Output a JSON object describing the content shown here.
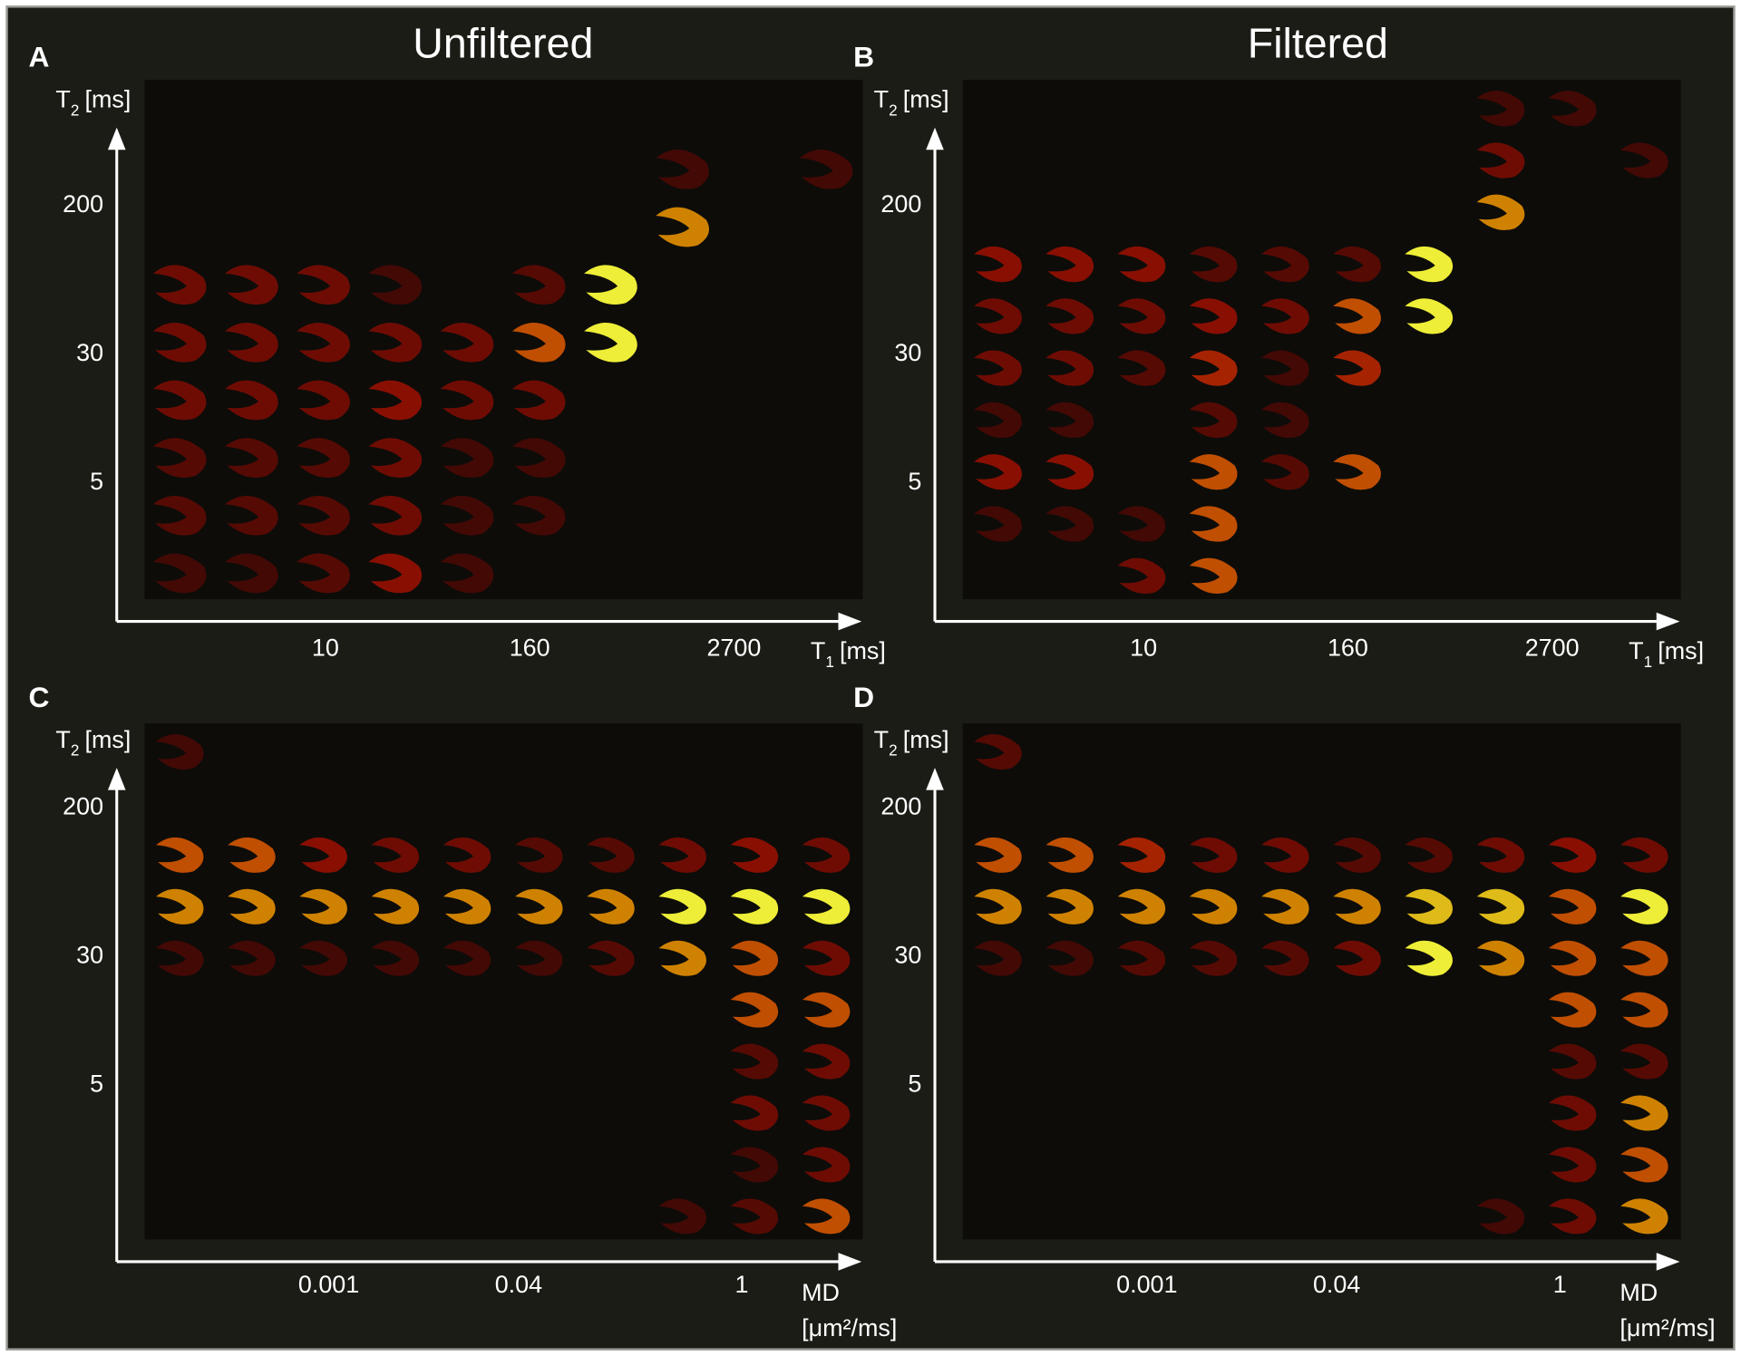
{
  "column_titles": [
    "Unfiltered",
    "Filtered"
  ],
  "panels": [
    {
      "letter": "A",
      "y_axis": {
        "symbol": "T",
        "subscript": "2",
        "unit": "[ms]",
        "ticks": [
          "200",
          "30",
          "5"
        ]
      },
      "x_axis": {
        "symbol": "T",
        "subscript": "1",
        "unit": "[ms]",
        "ticks": [
          "10",
          "160",
          "2700"
        ]
      }
    },
    {
      "letter": "B",
      "y_axis": {
        "symbol": "T",
        "subscript": "2",
        "unit": "[ms]",
        "ticks": [
          "200",
          "30",
          "5"
        ]
      },
      "x_axis": {
        "symbol": "T",
        "subscript": "1",
        "unit": "[ms]",
        "ticks": [
          "10",
          "160",
          "2700"
        ]
      }
    },
    {
      "letter": "C",
      "y_axis": {
        "symbol": "T",
        "subscript": "2",
        "unit": "[ms]",
        "ticks": [
          "200",
          "30",
          "5"
        ]
      },
      "x_axis": {
        "symbol": "MD",
        "unit": "[μm²/ms]",
        "ticks": [
          "0.001",
          "0.04",
          "1"
        ]
      }
    },
    {
      "letter": "D",
      "y_axis": {
        "symbol": "T",
        "subscript": "2",
        "unit": "[ms]",
        "ticks": [
          "200",
          "30",
          "5"
        ]
      },
      "x_axis": {
        "symbol": "MD",
        "unit": "[μm²/ms]",
        "ticks": [
          "0.001",
          "0.04",
          "1"
        ]
      }
    }
  ]
}
